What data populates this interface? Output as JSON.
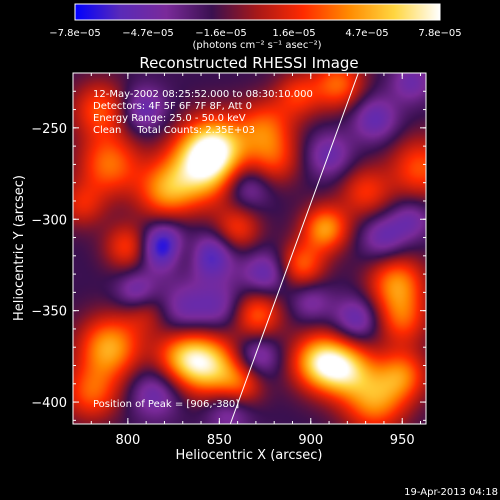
{
  "chart_data": {
    "type": "heatmap",
    "title": "Reconstructed RHESSI Image",
    "xlabel": "Heliocentric X (arcsec)",
    "ylabel": "Heliocentric Y (arcsec)",
    "xlim": [
      770,
      963
    ],
    "ylim": [
      -412,
      -220
    ],
    "x_ticks": [
      800,
      850,
      900,
      950
    ],
    "y_ticks": [
      -250,
      -300,
      -350,
      -400
    ],
    "grid": false,
    "colorbar": {
      "location": "top",
      "range": [
        -7.8e-05,
        7.8e-05
      ],
      "tick_labels": [
        "−7.8e−05",
        "−4.7e−05",
        "−1.6e−05",
        "1.6e−05",
        "4.7e−05",
        "7.8e−05"
      ],
      "unit_label": "(photons cm⁻² s⁻¹ asec⁻²)",
      "colors": [
        "#0000ff",
        "#5a2ab8",
        "#7a2a9a",
        "#3a1050",
        "#a81818",
        "#ff2a00",
        "#ff8a00",
        "#ffd640",
        "#ffffff"
      ]
    },
    "annotations": [
      "12-May-2002 08:25:52.000 to 08:30:10.000",
      "Detectors: 4F 5F 6F 7F 8F, Att 0",
      "Energy Range: 25.0 - 50.0 keV",
      "Clean     Total Counts: 2.35E+03"
    ],
    "peak_label": "Position of Peak = [906,-380]",
    "peak": [
      906,
      -380
    ],
    "limb_line": [
      [
        856,
        -412
      ],
      [
        926,
        -220
      ]
    ],
    "blobs": [
      {
        "x": 840,
        "y": -272,
        "v": 7.6e-05,
        "s": 14
      },
      {
        "x": 848,
        "y": -260,
        "v": 6.5e-05,
        "s": 12
      },
      {
        "x": 820,
        "y": -285,
        "v": 5e-05,
        "s": 11
      },
      {
        "x": 790,
        "y": -270,
        "v": 5.2e-05,
        "s": 12
      },
      {
        "x": 785,
        "y": -240,
        "v": 4.5e-05,
        "s": 11
      },
      {
        "x": 775,
        "y": -292,
        "v": 3.2e-05,
        "s": 9
      },
      {
        "x": 800,
        "y": -315,
        "v": 4.2e-05,
        "s": 9
      },
      {
        "x": 860,
        "y": -305,
        "v": 3.8e-05,
        "s": 9
      },
      {
        "x": 875,
        "y": -250,
        "v": 4.6e-05,
        "s": 11
      },
      {
        "x": 880,
        "y": -268,
        "v": 3.5e-05,
        "s": 10
      },
      {
        "x": 893,
        "y": -232,
        "v": 3.6e-05,
        "s": 9
      },
      {
        "x": 915,
        "y": -226,
        "v": 5e-05,
        "s": 10
      },
      {
        "x": 908,
        "y": -305,
        "v": 6.2e-05,
        "s": 9
      },
      {
        "x": 895,
        "y": -325,
        "v": 4.8e-05,
        "s": 9
      },
      {
        "x": 930,
        "y": -285,
        "v": 3.8e-05,
        "s": 10
      },
      {
        "x": 960,
        "y": -272,
        "v": 4.6e-05,
        "s": 12
      },
      {
        "x": 947,
        "y": -335,
        "v": 5.8e-05,
        "s": 11
      },
      {
        "x": 950,
        "y": -355,
        "v": 4.2e-05,
        "s": 10
      },
      {
        "x": 905,
        "y": -378,
        "v": 7.6e-05,
        "s": 11
      },
      {
        "x": 920,
        "y": -382,
        "v": 6.2e-05,
        "s": 11
      },
      {
        "x": 935,
        "y": -400,
        "v": 5.6e-05,
        "s": 12
      },
      {
        "x": 950,
        "y": -385,
        "v": 5e-05,
        "s": 10
      },
      {
        "x": 845,
        "y": -380,
        "v": 7e-05,
        "s": 12
      },
      {
        "x": 830,
        "y": -375,
        "v": 5.6e-05,
        "s": 11
      },
      {
        "x": 790,
        "y": -370,
        "v": 6.6e-05,
        "s": 12
      },
      {
        "x": 780,
        "y": -395,
        "v": 4.6e-05,
        "s": 11
      },
      {
        "x": 870,
        "y": -352,
        "v": 5.2e-05,
        "s": 10
      },
      {
        "x": 862,
        "y": -390,
        "v": 4e-05,
        "s": 9
      },
      {
        "x": 810,
        "y": -350,
        "v": 3e-05,
        "s": 9
      },
      {
        "x": 830,
        "y": -318,
        "v": 3.2e-05,
        "s": 8
      },
      {
        "x": 820,
        "y": -315,
        "v": -6.6e-05,
        "s": 9
      },
      {
        "x": 845,
        "y": -320,
        "v": -4.5e-05,
        "s": 9
      },
      {
        "x": 805,
        "y": -340,
        "v": -3.6e-05,
        "s": 8
      },
      {
        "x": 875,
        "y": -330,
        "v": -3.6e-05,
        "s": 9
      },
      {
        "x": 830,
        "y": -350,
        "v": -3e-05,
        "s": 11
      },
      {
        "x": 852,
        "y": -348,
        "v": -2.8e-05,
        "s": 10
      },
      {
        "x": 808,
        "y": -240,
        "v": -3.5e-05,
        "s": 9
      },
      {
        "x": 865,
        "y": -282,
        "v": -3.2e-05,
        "s": 9
      },
      {
        "x": 870,
        "y": -375,
        "v": -3.6e-05,
        "s": 9
      },
      {
        "x": 815,
        "y": -395,
        "v": -3.2e-05,
        "s": 10
      },
      {
        "x": 855,
        "y": -405,
        "v": -2.8e-05,
        "s": 9
      },
      {
        "x": 935,
        "y": -245,
        "v": -3.4e-05,
        "s": 9
      },
      {
        "x": 940,
        "y": -310,
        "v": -3.2e-05,
        "s": 9
      },
      {
        "x": 925,
        "y": -355,
        "v": -3.6e-05,
        "s": 9
      },
      {
        "x": 910,
        "y": -265,
        "v": -3e-05,
        "s": 9
      },
      {
        "x": 955,
        "y": -225,
        "v": -2.8e-05,
        "s": 8
      },
      {
        "x": 955,
        "y": -300,
        "v": -2.6e-05,
        "s": 8
      },
      {
        "x": 900,
        "y": -345,
        "v": -2.4e-05,
        "s": 8
      }
    ]
  },
  "footer": {
    "timestamp": "19-Apr-2013 04:18"
  }
}
